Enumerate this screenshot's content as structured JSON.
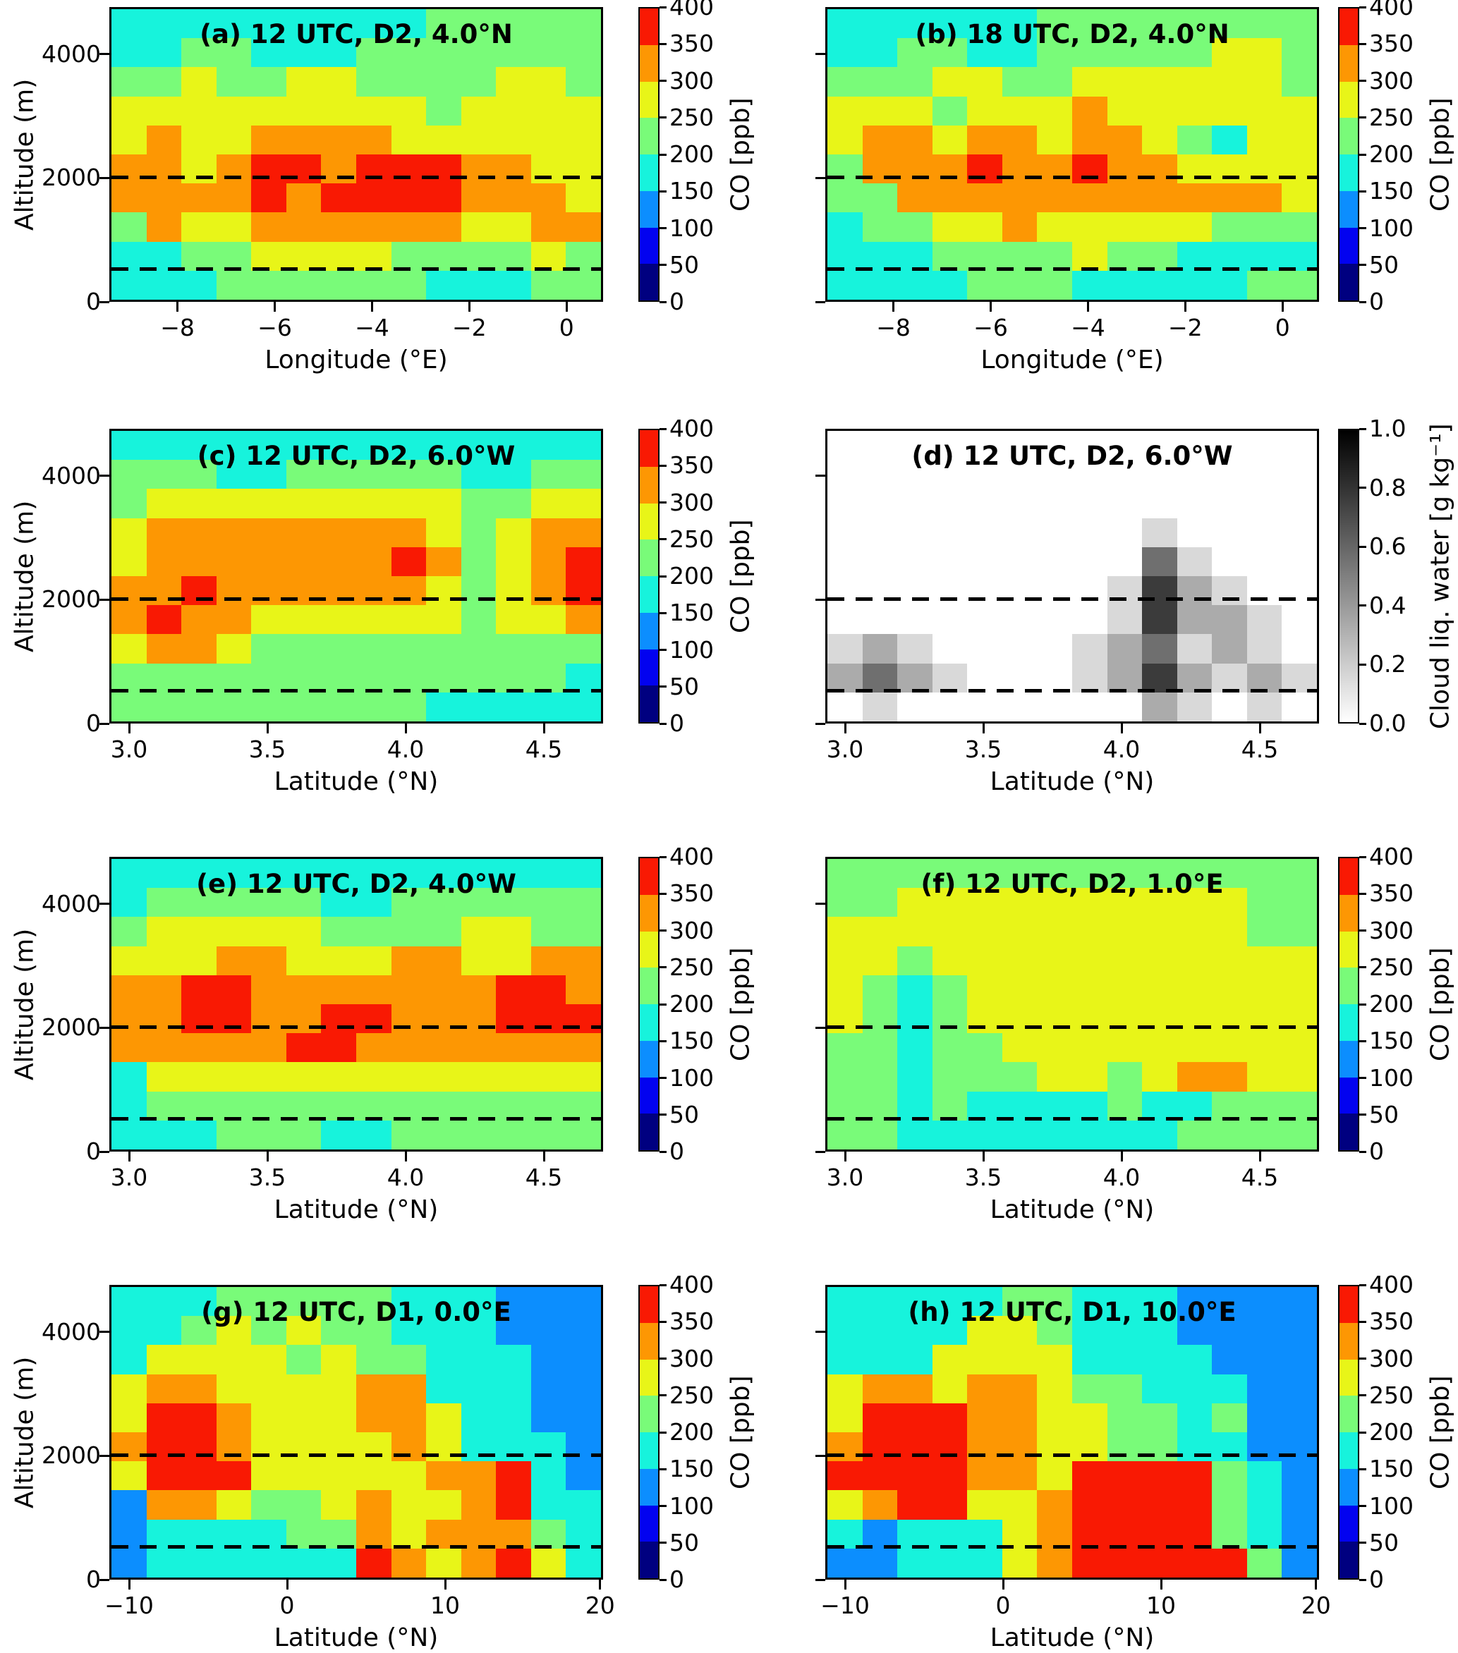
{
  "figure": {
    "yaxis_label": "Altitude (m)",
    "yticks": [
      {
        "label": "4000",
        "pos": 16
      },
      {
        "label": "2000",
        "pos": 58
      },
      {
        "label": "0",
        "pos": 100
      }
    ],
    "dashed_line_positions_pct": [
      58,
      89.5
    ]
  },
  "palette": {
    "n": "#000080",
    "b": "#0202F0",
    "l": "#0C8EFE",
    "c": "#17F3DC",
    "g": "#79FB79",
    "y": "#E8F518",
    "o": "#FD9703",
    "r": "#F91903",
    "w": "#FFFFFF",
    "1": "#D9D9D9",
    "2": "#ABABAB",
    "3": "#6F6F6F",
    "4": "#3B3B3B"
  },
  "colorbars": {
    "co": {
      "label": "CO [ppb]",
      "tick_labels": [
        "400",
        "350",
        "300",
        "250",
        "200",
        "150",
        "100",
        "50",
        "0"
      ],
      "bands_bottom_to_top": [
        "n",
        "b",
        "l",
        "c",
        "g",
        "y",
        "o",
        "r"
      ]
    },
    "cloud": {
      "label": "Cloud liq. water [g kg⁻¹]",
      "tick_labels": [
        "1.0",
        "0.8",
        "0.6",
        "0.4",
        "0.2",
        "0.0"
      ],
      "gradient_bottom_to_top": [
        "#FFFFFF",
        "#000000"
      ]
    }
  },
  "chart_data": {
    "type": "heatmap",
    "description": "Eight vertical cross-section contour panels of simulated CO concentration (and one of cloud liquid water), altitude vs longitude/latitude, with dashed reference lines at 2000 m and 500 m.",
    "co_levels_ppb": [
      0,
      50,
      100,
      150,
      200,
      250,
      300,
      350,
      400
    ],
    "cell_value_key_ppb": {
      "n": "0-50",
      "b": "50-100",
      "l": "100-150",
      "c": "150-200",
      "g": "200-250",
      "y": "250-300",
      "o": "300-350",
      "r": "350-400"
    },
    "cloud_cell_key_g_per_kg": {
      "w": "0.0",
      "1": "~0.1",
      "2": "~0.25",
      "3": "~0.5",
      "4": "~0.8"
    },
    "grid_note": "grid rows are top-to-bottom (high altitude to surface), 14 columns left-to-right across the x-range",
    "panels": [
      {
        "id": "a",
        "row": 0,
        "col": 0,
        "title": "(a) 12 UTC, D2, 4.0°N",
        "xlabel": "Longitude (°E)",
        "x_range": [
          -9.4,
          0.75
        ],
        "y_range_m": [
          0,
          4760
        ],
        "dashed_lines_y_m": [
          2000,
          500
        ],
        "colorbar": "co",
        "xticks": [
          {
            "label": "−8",
            "pos": 13.8
          },
          {
            "label": "−6",
            "pos": 33.5
          },
          {
            "label": "−4",
            "pos": 53.2
          },
          {
            "label": "−2",
            "pos": 72.9
          },
          {
            "label": "0",
            "pos": 92.6
          }
        ],
        "grid": [
          "cccccccccggggg",
          "ccggcccggggggg",
          "ggyggyyggggyyg",
          "yyyyyyyyygyyyy",
          "yoyyooooyyyyyy",
          "ooyorrorrrooyy",
          "oooororrrroooy",
          "goyyooooooyyoo",
          "ccggyyyyggggyg",
          "cccggggggcccgg"
        ]
      },
      {
        "id": "b",
        "row": 0,
        "col": 1,
        "title": "(b) 18 UTC, D2, 4.0°N",
        "xlabel": "Longitude (°E)",
        "x_range": [
          -9.4,
          0.75
        ],
        "y_range_m": [
          0,
          4760
        ],
        "dashed_lines_y_m": [
          2000,
          500
        ],
        "colorbar": "co",
        "xticks": [
          {
            "label": "−8",
            "pos": 13.8
          },
          {
            "label": "−6",
            "pos": 33.5
          },
          {
            "label": "−4",
            "pos": 53.2
          },
          {
            "label": "−2",
            "pos": 72.9
          },
          {
            "label": "0",
            "pos": 92.6
          }
        ],
        "grid": [
          "ccccccgggggggg",
          "ccggccgggggyyg",
          "gggyyggyyyyyyg",
          "yyygyyyoyyyyyy",
          "yooyooyooygcyy",
          "goooroorooyyyy",
          "ggoooooooooooy",
          "cggyyoyyyyyggg",
          "cccggggyggcccc",
          "ccccgggcccccgg"
        ]
      },
      {
        "id": "c",
        "row": 1,
        "col": 0,
        "title": "(c) 12 UTC, D2, 6.0°W",
        "xlabel": "Latitude (°N)",
        "x_range": [
          2.93,
          4.71
        ],
        "y_range_m": [
          0,
          4760
        ],
        "dashed_lines_y_m": [
          2000,
          500
        ],
        "colorbar": "co",
        "xticks": [
          {
            "label": "3.0",
            "pos": 4
          },
          {
            "label": "3.5",
            "pos": 32
          },
          {
            "label": "4.0",
            "pos": 60
          },
          {
            "label": "4.5",
            "pos": 88
          }
        ],
        "grid": [
          "cccccccccccccc",
          "gggccgggggccgg",
          "gyyyyyyyyyggyy",
          "yooooooooygyoo",
          "yooooooorogyor",
          "oorooooooygyor",
          "orooyyyyyygyyo",
          "yooygggggggggg",
          "gggggggggggggc",
          "gggggggggccccc"
        ]
      },
      {
        "id": "d",
        "row": 1,
        "col": 1,
        "title": "(d) 12 UTC, D2, 6.0°W",
        "xlabel": "Latitude (°N)",
        "x_range": [
          2.93,
          4.71
        ],
        "y_range_m": [
          0,
          4760
        ],
        "dashed_lines_y_m": [
          2000,
          500
        ],
        "colorbar": "cloud",
        "xticks": [
          {
            "label": "3.0",
            "pos": 4
          },
          {
            "label": "3.5",
            "pos": 32
          },
          {
            "label": "4.0",
            "pos": 60
          },
          {
            "label": "4.5",
            "pos": 88
          }
        ],
        "grid": [
          "wwwwwwwwwwwwww",
          "wwwwwwwwwwwwww",
          "wwwwwwwwwwwwww",
          "wwwwwwwww1wwww",
          "wwwwwwwww31www",
          "wwwwwwww1421ww",
          "wwwwwwww14221w",
          "121wwww123121w",
          "2321www1242121",
          "w1wwwwwww21w1w"
        ]
      },
      {
        "id": "e",
        "row": 2,
        "col": 0,
        "title": "(e) 12 UTC, D2, 4.0°W",
        "xlabel": "Latitude (°N)",
        "x_range": [
          2.93,
          4.71
        ],
        "y_range_m": [
          0,
          4760
        ],
        "dashed_lines_y_m": [
          2000,
          500
        ],
        "colorbar": "co",
        "xticks": [
          {
            "label": "3.0",
            "pos": 4
          },
          {
            "label": "3.5",
            "pos": 32
          },
          {
            "label": "4.0",
            "pos": 60
          },
          {
            "label": "4.5",
            "pos": 88
          }
        ],
        "grid": [
          "cccccccccccccc",
          "cgggggccgggggg",
          "gyyyyyggggyygg",
          "yyyooyyyooyyoo",
          "oorrooooooorro",
          "oorroorrooorrr",
          "ooooorrooooooo",
          "cyyyyyyyyyyyyy",
          "cggggggggggggg",
          "cccgggccgggggg"
        ]
      },
      {
        "id": "f",
        "row": 2,
        "col": 1,
        "title": "(f) 12 UTC, D2, 1.0°E",
        "xlabel": "Latitude (°N)",
        "x_range": [
          2.93,
          4.71
        ],
        "y_range_m": [
          0,
          4760
        ],
        "dashed_lines_y_m": [
          2000,
          500
        ],
        "colorbar": "co",
        "xticks": [
          {
            "label": "3.0",
            "pos": 4
          },
          {
            "label": "3.5",
            "pos": 32
          },
          {
            "label": "4.0",
            "pos": 60
          },
          {
            "label": "4.5",
            "pos": 88
          }
        ],
        "grid": [
          "gggggggggggggg",
          "ggyyyyyyyyyygg",
          "yyyyyyyyyyyygg",
          "yygyyyyyyyyyyy",
          "ygcgyyyyyyyyyy",
          "ygcgyyyyyyyyyy",
          "ggcggyyyyyyyyy",
          "ggcgggyygyooyy",
          "ggcgccccgccggg",
          "ggccccccccgggg"
        ]
      },
      {
        "id": "g",
        "row": 3,
        "col": 0,
        "title": "(g) 12 UTC, D1, 0.0°E",
        "xlabel": "Latitude (°N)",
        "x_range": [
          -11.3,
          20.1
        ],
        "y_range_m": [
          0,
          4760
        ],
        "dashed_lines_y_m": [
          2000,
          500
        ],
        "colorbar": "co",
        "xticks": [
          {
            "label": "−10",
            "pos": 4
          },
          {
            "label": "0",
            "pos": 36
          },
          {
            "label": "10",
            "pos": 68
          },
          {
            "label": "20",
            "pos": 99.4
          }
        ],
        "grid": [
          "cccgggggccclll",
          "ccgygyggccclll",
          "cyyyygyggcccll",
          "yooyyyyoocccll",
          "yrroyyyooyccll",
          "orroyyyyoycccl",
          "yrrryyyyyoorcl",
          "looyggyoyyorcc",
          "lccccggoyooogc",
          "lccccccroyoryc"
        ]
      },
      {
        "id": "h",
        "row": 3,
        "col": 1,
        "title": "(h) 12 UTC, D1, 10.0°E",
        "xlabel": "Latitude (°N)",
        "x_range": [
          -11.3,
          20.1
        ],
        "y_range_m": [
          0,
          4760
        ],
        "dashed_lines_y_m": [
          2000,
          500
        ],
        "colorbar": "co",
        "xticks": [
          {
            "label": "−10",
            "pos": 4
          },
          {
            "label": "0",
            "pos": 36
          },
          {
            "label": "10",
            "pos": 68
          },
          {
            "label": "20",
            "pos": 99.4
          }
        ],
        "grid": [
          "cccccggcccllll",
          "ccccyygcccllll",
          "cccyyyycccclll",
          "yooyooyggcccll",
          "yrrrooyyggcgll",
          "orrrooyyggccll",
          "rrrrooyrrrrgcl",
          "yorryyorrrrgcl",
          "clcccyorrrrgcl",
          "llcccyorrrrrgl"
        ]
      }
    ]
  }
}
